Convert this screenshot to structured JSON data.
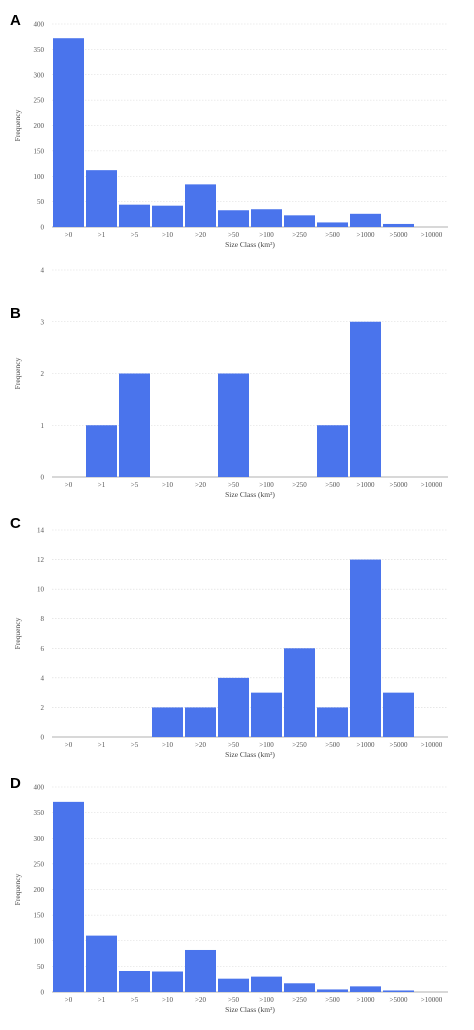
{
  "colors": {
    "bar": "#4a74ec"
  },
  "chart_data": [
    {
      "type": "bar",
      "panel_label": "A",
      "categories": [
        ">0",
        ">1",
        ">5",
        ">10",
        ">20",
        ">50",
        ">100",
        ">250",
        ">500",
        ">1000",
        ">5000",
        ">10000"
      ],
      "values": [
        372,
        112,
        44,
        42,
        84,
        33,
        35,
        23,
        9,
        26,
        6,
        0
      ],
      "ylim": [
        0,
        400
      ],
      "yticks": [
        "0",
        "50",
        "100",
        "150",
        "200",
        "250",
        "300",
        "350",
        "400"
      ],
      "xlabel": "Size Class (km²)",
      "ylabel": "Frequency",
      "grid": true
    },
    {
      "type": "bar",
      "panel_label": "B",
      "categories": [
        ">0",
        ">1",
        ">5",
        ">10",
        ">20",
        ">50",
        ">100",
        ">250",
        ">500",
        ">1000",
        ">5000",
        ">10000"
      ],
      "values": [
        0,
        1,
        2,
        0,
        0,
        2,
        0,
        0,
        1,
        3,
        0,
        0
      ],
      "ylim": [
        0,
        4
      ],
      "yticks": [
        "0",
        "1",
        "2",
        "3",
        "4"
      ],
      "xlabel": "Size Class (km²)",
      "ylabel": "Frequency",
      "grid": true
    },
    {
      "type": "bar",
      "panel_label": "C",
      "categories": [
        ">0",
        ">1",
        ">5",
        ">10",
        ">20",
        ">50",
        ">100",
        ">250",
        ">500",
        ">1000",
        ">5000",
        ">10000"
      ],
      "values": [
        0,
        0,
        0,
        2,
        2,
        4,
        3,
        6,
        2,
        12,
        3,
        0
      ],
      "ylim": [
        0,
        14
      ],
      "yticks": [
        "0",
        "2",
        "4",
        "6",
        "8",
        "10",
        "12",
        "14"
      ],
      "xlabel": "Size Class (km²)",
      "ylabel": "Frequency",
      "grid": true
    },
    {
      "type": "bar",
      "panel_label": "D",
      "categories": [
        ">0",
        ">1",
        ">5",
        ">10",
        ">20",
        ">50",
        ">100",
        ">250",
        ">500",
        ">1000",
        ">5000",
        ">10000"
      ],
      "values": [
        371,
        110,
        41,
        40,
        82,
        26,
        30,
        17,
        5,
        11,
        3,
        0
      ],
      "ylim": [
        0,
        400
      ],
      "yticks": [
        "0",
        "50",
        "100",
        "150",
        "200",
        "250",
        "300",
        "350",
        "400"
      ],
      "xlabel": "Size Class (km²)",
      "ylabel": "Frequency",
      "grid": true
    }
  ]
}
